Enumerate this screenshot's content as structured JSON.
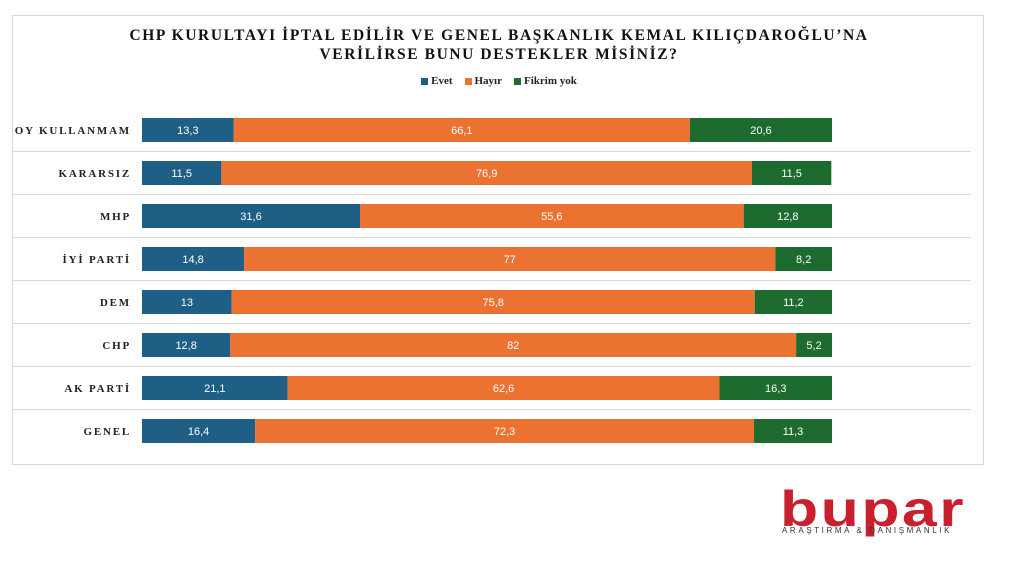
{
  "chart_data": {
    "type": "bar",
    "orientation": "horizontal",
    "stacked": true,
    "title_lines": [
      "CHP KURULTAYI İPTAL EDİLİR VE GENEL BAŞKANLIK KEMAL KILIÇDAROĞLU’NA",
      "VERİLİRSE BUNU  DESTEKLER MİSİNİZ?"
    ],
    "categories": [
      "OY KULLANMAM",
      "KARARSIZ",
      "MHP",
      "İYİ PARTİ",
      "DEM",
      "CHP",
      "AK PARTİ",
      "GENEL"
    ],
    "series": [
      {
        "name": "Evet",
        "color": "#1f5f86",
        "values": [
          13.3,
          11.5,
          31.6,
          14.8,
          13,
          12.8,
          21.1,
          16.4
        ],
        "labels": [
          "13,3",
          "11,5",
          "31,6",
          "14,8",
          "13",
          "12,8",
          "21,1",
          "16,4"
        ]
      },
      {
        "name": "Hayır",
        "color": "#ec7232",
        "values": [
          66.1,
          76.9,
          55.6,
          77,
          75.8,
          82,
          62.6,
          72.3
        ],
        "labels": [
          "66,1",
          "76,9",
          "55,6",
          "77",
          "75,8",
          "82",
          "62,6",
          "72,3"
        ]
      },
      {
        "name": "Fikrim yok",
        "color": "#1e6b2f",
        "values": [
          20.6,
          11.5,
          12.8,
          8.2,
          11.2,
          5.2,
          16.3,
          11.3
        ],
        "labels": [
          "20,6",
          "11,5",
          "12,8",
          "8,2",
          "11,2",
          "5,2",
          "16,3",
          "11,3"
        ]
      }
    ],
    "xlim": [
      0,
      100
    ],
    "legend_position": "top",
    "grid": true
  },
  "logo": {
    "name": "bupar",
    "tagline": "ARAŞTIRMA & DANIŞMANLIK",
    "color": "#c8202d"
  }
}
